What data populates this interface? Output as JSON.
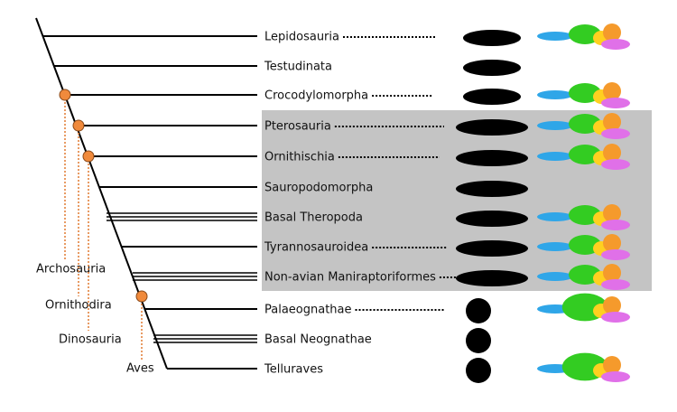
{
  "taxa": [
    {
      "label": "Lepidosauria"
    },
    {
      "label": "Testudinata"
    },
    {
      "label": "Crocodylomorpha"
    },
    {
      "label": "Pterosauria"
    },
    {
      "label": "Ornithischia"
    },
    {
      "label": "Sauropodomorpha"
    },
    {
      "label": "Basal Theropoda"
    },
    {
      "label": "Tyrannosauroidea"
    },
    {
      "label": "Non-avian Maniraptoriformes"
    },
    {
      "label": "Palaeognathae"
    },
    {
      "label": "Basal Neognathae"
    },
    {
      "label": "Telluraves"
    }
  ],
  "clades": [
    {
      "label": "Archosauria"
    },
    {
      "label": "Ornithodira"
    },
    {
      "label": "Dinosauria"
    },
    {
      "label": "Aves"
    }
  ]
}
